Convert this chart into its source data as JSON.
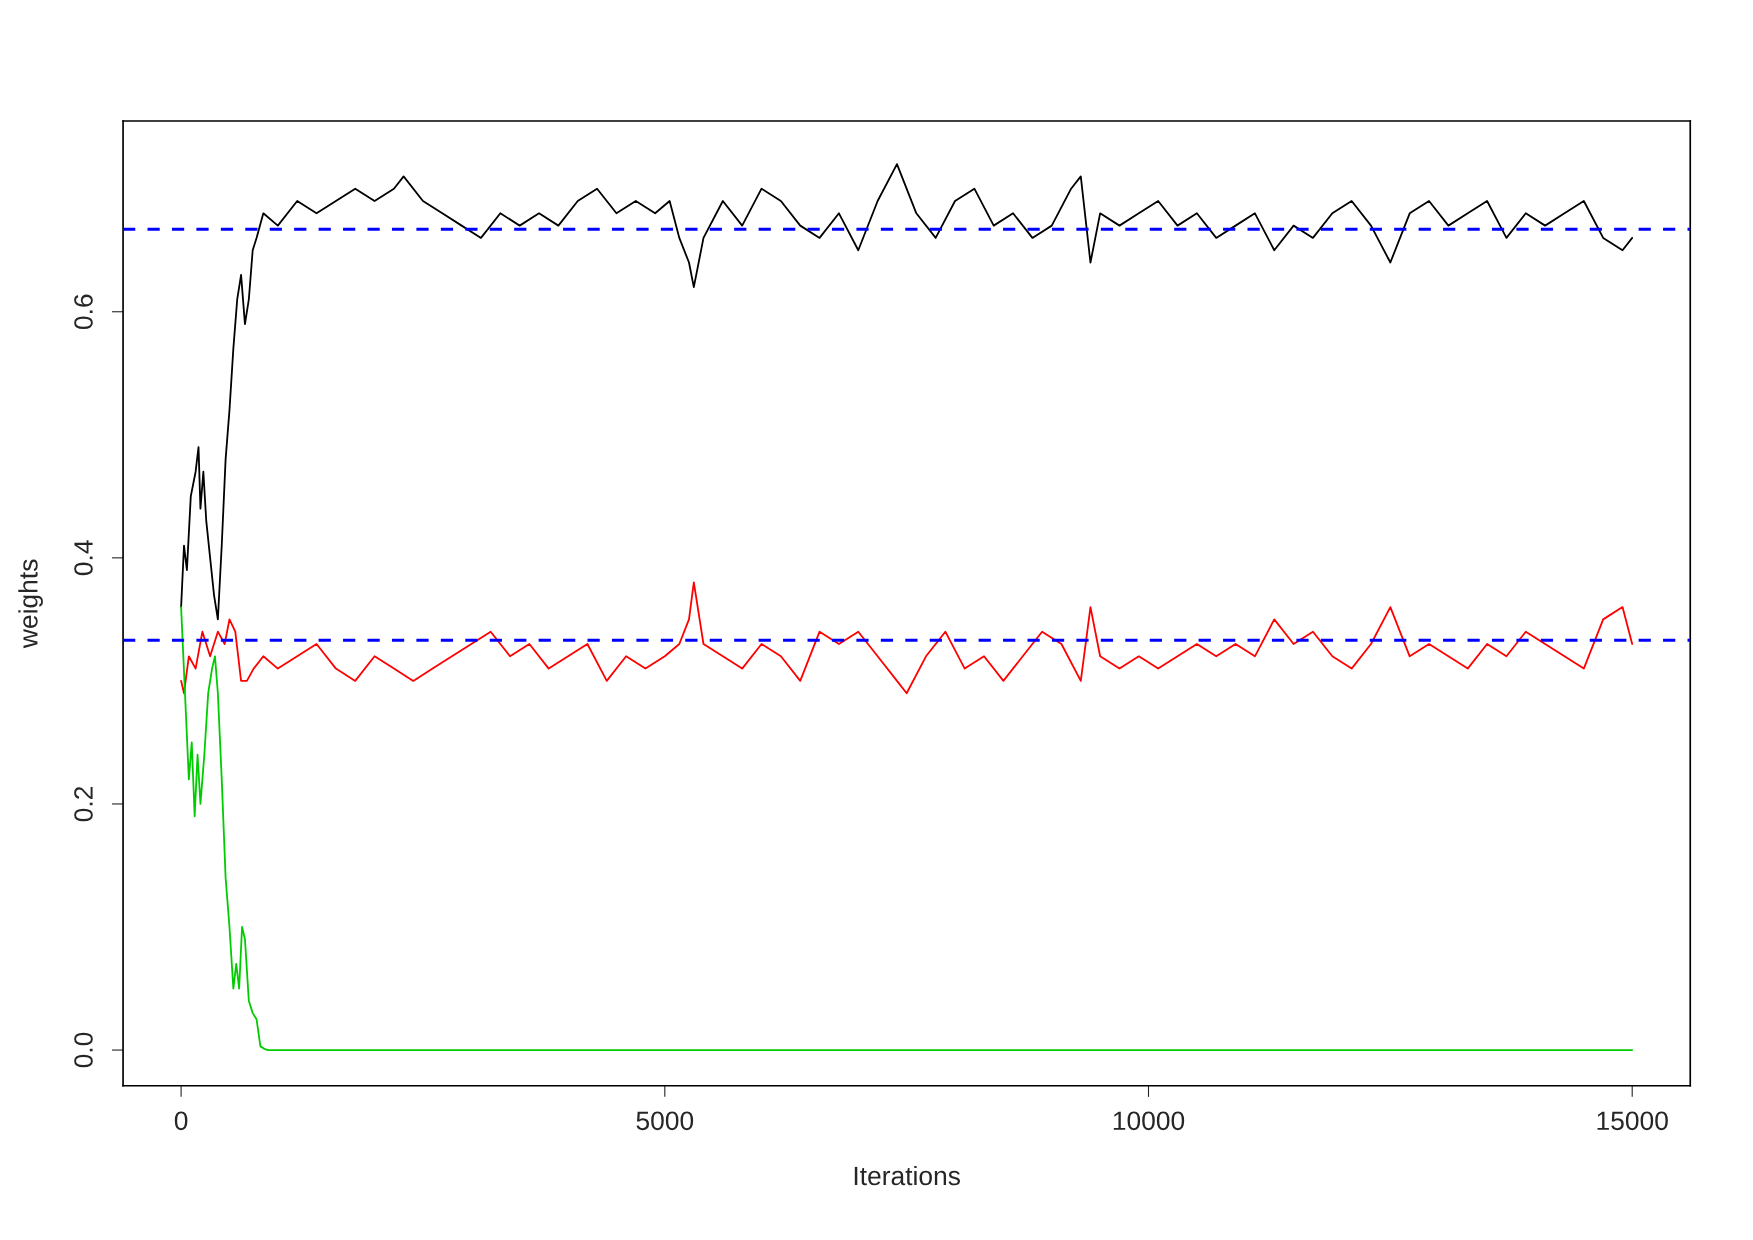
{
  "chart_data": {
    "type": "line",
    "xlabel": "Iterations",
    "ylabel": "weights",
    "xlim": [
      -600,
      15600
    ],
    "ylim": [
      -0.029,
      0.755
    ],
    "xticks": [
      0,
      5000,
      10000,
      15000
    ],
    "yticks": [
      {
        "value": 0.0,
        "label": "0.0"
      },
      {
        "value": 0.2,
        "label": "0.2"
      },
      {
        "value": 0.4,
        "label": "0.4"
      },
      {
        "value": 0.6,
        "label": "0.6"
      }
    ],
    "grid": false,
    "legend": false,
    "marker": "none",
    "line_style": "solid",
    "series": [
      {
        "color": "#000000",
        "x": [
          0,
          30,
          60,
          100,
          150,
          180,
          200,
          230,
          260,
          300,
          340,
          380,
          420,
          460,
          500,
          540,
          580,
          620,
          660,
          700,
          740,
          780,
          850,
          1000,
          1200,
          1400,
          1600,
          1800,
          2000,
          2200,
          2300,
          2500,
          2700,
          2900,
          3100,
          3300,
          3500,
          3700,
          3900,
          4100,
          4300,
          4500,
          4700,
          4900,
          5050,
          5150,
          5250,
          5300,
          5400,
          5600,
          5800,
          6000,
          6200,
          6400,
          6600,
          6800,
          7000,
          7200,
          7400,
          7600,
          7800,
          8000,
          8200,
          8400,
          8600,
          8800,
          9000,
          9200,
          9300,
          9400,
          9500,
          9700,
          9900,
          10100,
          10300,
          10500,
          10700,
          10900,
          11100,
          11300,
          11500,
          11700,
          11900,
          12100,
          12300,
          12500,
          12700,
          12900,
          13100,
          13300,
          13500,
          13700,
          13900,
          14100,
          14300,
          14500,
          14700,
          14900,
          15000
        ],
        "values": [
          0.36,
          0.41,
          0.39,
          0.45,
          0.47,
          0.49,
          0.44,
          0.47,
          0.43,
          0.4,
          0.37,
          0.35,
          0.41,
          0.48,
          0.52,
          0.57,
          0.61,
          0.63,
          0.59,
          0.61,
          0.65,
          0.66,
          0.68,
          0.67,
          0.69,
          0.68,
          0.69,
          0.7,
          0.69,
          0.7,
          0.71,
          0.69,
          0.68,
          0.67,
          0.66,
          0.68,
          0.67,
          0.68,
          0.67,
          0.69,
          0.7,
          0.68,
          0.69,
          0.68,
          0.69,
          0.66,
          0.64,
          0.62,
          0.66,
          0.69,
          0.67,
          0.7,
          0.69,
          0.67,
          0.66,
          0.68,
          0.65,
          0.69,
          0.72,
          0.68,
          0.66,
          0.69,
          0.7,
          0.67,
          0.68,
          0.66,
          0.67,
          0.7,
          0.71,
          0.64,
          0.68,
          0.67,
          0.68,
          0.69,
          0.67,
          0.68,
          0.66,
          0.67,
          0.68,
          0.65,
          0.67,
          0.66,
          0.68,
          0.69,
          0.67,
          0.64,
          0.68,
          0.69,
          0.67,
          0.68,
          0.69,
          0.66,
          0.68,
          0.67,
          0.68,
          0.69,
          0.66,
          0.65,
          0.66
        ]
      },
      {
        "color": "#ff0000",
        "x": [
          0,
          30,
          80,
          150,
          220,
          300,
          380,
          450,
          500,
          560,
          620,
          680,
          750,
          850,
          1000,
          1200,
          1400,
          1600,
          1800,
          2000,
          2200,
          2400,
          2600,
          2800,
          3000,
          3200,
          3400,
          3600,
          3800,
          4000,
          4200,
          4400,
          4600,
          4800,
          5000,
          5150,
          5250,
          5300,
          5400,
          5600,
          5800,
          6000,
          6200,
          6400,
          6600,
          6800,
          7000,
          7200,
          7400,
          7500,
          7700,
          7900,
          8100,
          8300,
          8500,
          8700,
          8900,
          9100,
          9300,
          9400,
          9500,
          9700,
          9900,
          10100,
          10300,
          10500,
          10700,
          10900,
          11100,
          11300,
          11500,
          11700,
          11900,
          12100,
          12300,
          12500,
          12700,
          12900,
          13100,
          13300,
          13500,
          13700,
          13900,
          14100,
          14300,
          14500,
          14700,
          14900,
          15000
        ],
        "values": [
          0.3,
          0.29,
          0.32,
          0.31,
          0.34,
          0.32,
          0.34,
          0.33,
          0.35,
          0.34,
          0.3,
          0.3,
          0.31,
          0.32,
          0.31,
          0.32,
          0.33,
          0.31,
          0.3,
          0.32,
          0.31,
          0.3,
          0.31,
          0.32,
          0.33,
          0.34,
          0.32,
          0.33,
          0.31,
          0.32,
          0.33,
          0.3,
          0.32,
          0.31,
          0.32,
          0.33,
          0.35,
          0.38,
          0.33,
          0.32,
          0.31,
          0.33,
          0.32,
          0.3,
          0.34,
          0.33,
          0.34,
          0.32,
          0.3,
          0.29,
          0.32,
          0.34,
          0.31,
          0.32,
          0.3,
          0.32,
          0.34,
          0.33,
          0.3,
          0.36,
          0.32,
          0.31,
          0.32,
          0.31,
          0.32,
          0.33,
          0.32,
          0.33,
          0.32,
          0.35,
          0.33,
          0.34,
          0.32,
          0.31,
          0.33,
          0.36,
          0.32,
          0.33,
          0.32,
          0.31,
          0.33,
          0.32,
          0.34,
          0.33,
          0.32,
          0.31,
          0.35,
          0.36,
          0.33
        ]
      },
      {
        "color": "#00cd00",
        "x": [
          0,
          40,
          80,
          110,
          140,
          170,
          200,
          240,
          280,
          320,
          350,
          380,
          420,
          460,
          500,
          540,
          570,
          600,
          630,
          660,
          700,
          740,
          780,
          820,
          860,
          900,
          15000
        ],
        "values": [
          0.36,
          0.29,
          0.22,
          0.25,
          0.19,
          0.24,
          0.2,
          0.24,
          0.29,
          0.31,
          0.32,
          0.29,
          0.22,
          0.14,
          0.1,
          0.05,
          0.07,
          0.05,
          0.1,
          0.09,
          0.04,
          0.03,
          0.025,
          0.003,
          0.001,
          0.0,
          0.0
        ]
      }
    ],
    "ref_lines": [
      {
        "axis": "y",
        "value": 0.667,
        "color": "#0000ff",
        "line_style": "dashed"
      },
      {
        "axis": "y",
        "value": 0.333,
        "color": "#0000ff",
        "line_style": "dashed"
      }
    ]
  }
}
